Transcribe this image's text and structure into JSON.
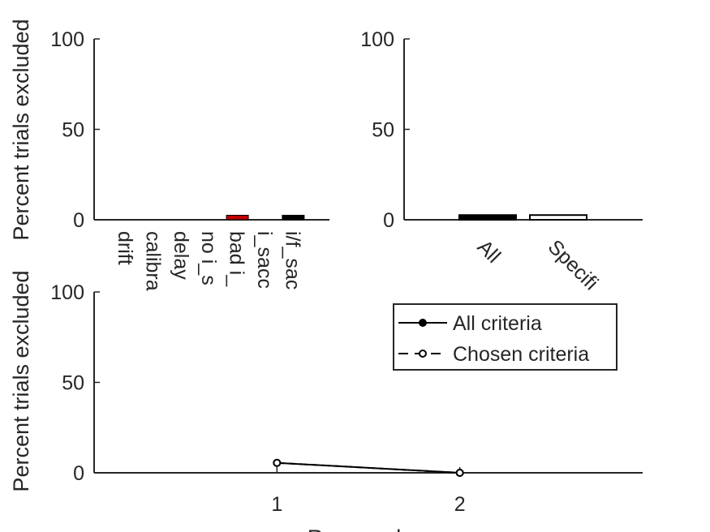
{
  "colors": {
    "axis": "#262626",
    "red_bar": "#c00000",
    "black": "#000000",
    "white": "#ffffff"
  },
  "chart_data": [
    {
      "type": "bar",
      "ylabel": "Percent trials excluded",
      "ylim": [
        0,
        100
      ],
      "yticks": [
        0,
        50,
        100
      ],
      "categories": [
        "drift",
        "calibra",
        "delay",
        "no i_s",
        "bad i_",
        "i_sacc",
        "i/f_sac"
      ],
      "values": [
        0,
        0,
        0,
        0,
        2.5,
        0,
        2.5
      ],
      "bar_colors": [
        "black",
        "black",
        "black",
        "black",
        "red_bar",
        "black",
        "black"
      ]
    },
    {
      "type": "bar",
      "ylabel": "",
      "ylim": [
        0,
        100
      ],
      "yticks": [
        0,
        50,
        100
      ],
      "categories": [
        "All",
        "Specifi"
      ],
      "values": [
        2.6,
        2.6
      ],
      "bar_fill": [
        "black",
        "white"
      ]
    },
    {
      "type": "line",
      "ylabel": "Percent trials excluded",
      "xlabel": "Run number",
      "ylim": [
        0,
        100
      ],
      "yticks": [
        0,
        50,
        100
      ],
      "xlim": [
        0,
        3
      ],
      "xticks": [
        1,
        2
      ],
      "series": [
        {
          "name": "All criteria",
          "x": [
            1,
            2
          ],
          "y": [
            5.5,
            0
          ],
          "style": "solid",
          "marker": "filled"
        },
        {
          "name": "Chosen criteria",
          "x": [
            1,
            2
          ],
          "y": [
            5.5,
            0
          ],
          "style": "dashed",
          "marker": "open"
        }
      ],
      "legend": "top-right"
    }
  ]
}
